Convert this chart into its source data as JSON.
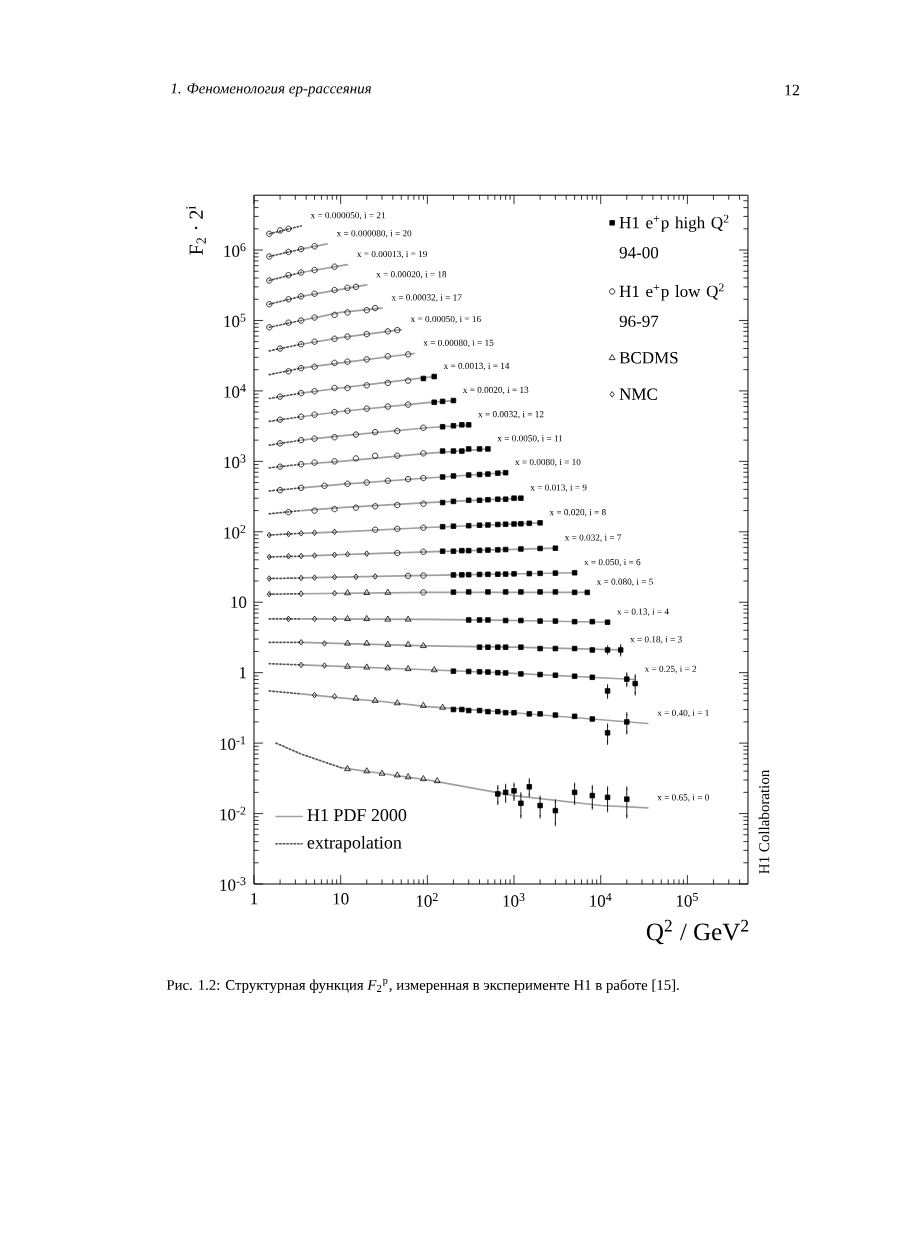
{
  "chart_data": {
    "type": "scatter",
    "xlabel": "Q$^{2}$ / GeV$^{2}$",
    "ylabel": "F$_{2}$ · 2$^{i}$",
    "log": "xy",
    "xlim": [
      1,
      500000
    ],
    "ylim": [
      0.001,
      6000000
    ],
    "xticks": [
      1,
      10,
      {
        "value": 100,
        "label": "10$^{2}$"
      },
      {
        "value": 1000,
        "label": "10$^{3}$"
      },
      {
        "value": 10000,
        "label": "10$^{4}$"
      },
      {
        "value": 100000,
        "label": "10$^{5}$"
      }
    ],
    "yticks": [
      {
        "value": 0.001,
        "label": "10$^{-3}$"
      },
      {
        "value": 0.01,
        "label": "10$^{-2}$"
      },
      {
        "value": 0.1,
        "label": "10$^{-1}$"
      },
      1,
      10,
      {
        "value": 100,
        "label": "10$^{2}$"
      },
      {
        "value": 1000,
        "label": "10$^{3}$"
      },
      {
        "value": 10000,
        "label": "10$^{4}$"
      },
      {
        "value": 100000,
        "label": "10$^{5}$"
      },
      {
        "value": 1000000,
        "label": "10$^{6}$"
      }
    ],
    "legend": "top right",
    "annotations": [
      "1. Феноменология ep-рассеяния",
      "12",
      "H1 Collaboration",
      "Рис. 1.2: Структурная функция *F*$_{2}$$^{p}$, измеренная в эксперименте H1 в работе [15].",
      {
        "text": "x = 0.000050, i = 21",
        "x": 3.5,
        "y": 2200000
      },
      {
        "text": "x = 0.000080, i = 20",
        "x": 7,
        "y": 1220000
      },
      {
        "text": "x = 0.00013, i = 19",
        "x": 12,
        "y": 620000
      },
      {
        "text": "x = 0.00020, i = 18",
        "x": 20,
        "y": 320000
      },
      {
        "text": "x = 0.00032, i = 17",
        "x": 30,
        "y": 150000
      },
      {
        "text": "x = 0.00050, i = 16",
        "x": 50,
        "y": 74000
      },
      {
        "text": "x = 0.00080, i = 15",
        "x": 70,
        "y": 34000
      },
      {
        "text": "x = 0.0013, i = 14",
        "x": 120,
        "y": 16000
      },
      {
        "text": "x = 0.0020, i = 13",
        "x": 200,
        "y": 7300
      },
      {
        "text": "x = 0.0032, i = 12",
        "x": 300,
        "y": 3300
      },
      {
        "text": "x = 0.0050, i = 11",
        "x": 500,
        "y": 1500
      },
      {
        "text": "x = 0.0080, i = 10",
        "x": 800,
        "y": 690
      },
      {
        "text": "x = 0.013, i = 9",
        "x": 1200,
        "y": 300
      },
      {
        "text": "x = 0.020, i = 8",
        "x": 2000,
        "y": 134
      },
      {
        "text": "x = 0.032, i = 7",
        "x": 3000,
        "y": 58.5
      },
      {
        "text": "x = 0.050, i = 6",
        "x": 5000,
        "y": 26.2
      },
      {
        "text": "x = 0.080, i = 5",
        "x": 7000,
        "y": 13.8
      },
      {
        "text": "x = 0.13, i = 4",
        "x": 12000,
        "y": 5.2
      },
      {
        "text": "x = 0.18, i = 3",
        "x": 17000,
        "y": 2.1
      },
      {
        "text": "x = 0.25, i = 2",
        "x": 25000,
        "y": 0.8
      },
      {
        "text": "x = 0.40, i = 1",
        "x": 35000,
        "y": 0.19
      },
      {
        "text": "x = 0.65, i = 0",
        "x": 35000,
        "y": 0.012
      }
    ],
    "series": [
      {
        "name": "H1 e$^{+}$p high Q$^{2}$ 94-00",
        "marker": "square",
        "color": "#000000",
        "x": [
          90,
          120,
          120,
          150,
          200,
          150,
          200,
          250,
          300,
          150,
          200,
          250,
          300,
          400,
          500,
          150,
          200,
          300,
          400,
          500,
          650,
          800,
          150,
          200,
          300,
          400,
          500,
          650,
          800,
          1000,
          1200,
          150,
          200,
          300,
          400,
          500,
          650,
          800,
          1000,
          1200,
          1500,
          2000,
          150,
          200,
          250,
          300,
          400,
          500,
          650,
          800,
          1200,
          2000,
          3000,
          200,
          250,
          300,
          400,
          500,
          650,
          800,
          1000,
          1500,
          2000,
          3000,
          5000,
          200,
          300,
          500,
          800,
          1200,
          2000,
          3000,
          5000,
          7000,
          300,
          400,
          500,
          800,
          1200,
          2000,
          3000,
          5000,
          8000,
          12000,
          400,
          500,
          650,
          800,
          1200,
          2000,
          3000,
          5000,
          8000,
          12000,
          17000,
          200,
          300,
          400,
          500,
          650,
          800,
          1200,
          2000,
          3000,
          5000,
          8000,
          12000,
          20000,
          25000,
          200,
          250,
          300,
          400,
          500,
          650,
          800,
          1000,
          1500,
          2000,
          3000,
          5000,
          8000,
          12000,
          20000,
          650,
          800,
          1000,
          1200,
          1500,
          2000,
          3000,
          5000,
          8000,
          12000,
          20000
        ],
        "values": [
          15000,
          16000,
          6900,
          7100,
          7300,
          3100,
          3200,
          3300,
          3300,
          1400,
          1400,
          1400,
          1500,
          1500,
          1500,
          600,
          620,
          640,
          650,
          660,
          680,
          690,
          260,
          270,
          280,
          280,
          285,
          290,
          290,
          300,
          300,
          118,
          120,
          122,
          124,
          125,
          127,
          128,
          129,
          130,
          132,
          134,
          53,
          53,
          54,
          54,
          54.5,
          55,
          55.4,
          56,
          57,
          58,
          58.5,
          24.4,
          24.5,
          24.6,
          24.8,
          24.9,
          25,
          25.1,
          25.3,
          25.5,
          25.7,
          25.9,
          26.2,
          13.9,
          14,
          14,
          14,
          14,
          14,
          14,
          13.8,
          13.8,
          5.6,
          5.6,
          5.6,
          5.5,
          5.5,
          5.4,
          5.4,
          5.3,
          5.3,
          5.2,
          2.3,
          2.3,
          2.3,
          2.3,
          2.3,
          2.2,
          2.2,
          2.2,
          2.1,
          2.1,
          2.1,
          1.05,
          1.04,
          1.03,
          1.02,
          1.0,
          0.99,
          0.96,
          0.94,
          0.92,
          0.89,
          0.86,
          0.55,
          0.81,
          0.7,
          0.3,
          0.3,
          0.29,
          0.29,
          0.28,
          0.28,
          0.27,
          0.27,
          0.26,
          0.26,
          0.25,
          0.24,
          0.22,
          0.14,
          0.2,
          0.019,
          0.02,
          0.021,
          0.014,
          0.024,
          0.013,
          0.011,
          0.02,
          0.018,
          0.017,
          0.016
        ],
        "errors": [
          null,
          null,
          null,
          null,
          null,
          null,
          null,
          null,
          null,
          null,
          null,
          null,
          null,
          null,
          null,
          null,
          null,
          null,
          null,
          null,
          null,
          null,
          null,
          null,
          null,
          null,
          null,
          null,
          null,
          null,
          null,
          null,
          null,
          null,
          null,
          null,
          null,
          null,
          null,
          null,
          null,
          null,
          null,
          null,
          null,
          null,
          null,
          null,
          null,
          null,
          null,
          null,
          null,
          null,
          null,
          null,
          null,
          null,
          null,
          null,
          null,
          null,
          null,
          null,
          null,
          null,
          null,
          null,
          null,
          null,
          null,
          null,
          null,
          null,
          null,
          null,
          null,
          null,
          null,
          null,
          null,
          null,
          null,
          null,
          null,
          null,
          null,
          null,
          null,
          null,
          null,
          null,
          null,
          0.2,
          0.3,
          null,
          null,
          null,
          null,
          null,
          null,
          null,
          null,
          null,
          null,
          null,
          0.1,
          0.15,
          0.2,
          null,
          null,
          null,
          null,
          null,
          null,
          null,
          null,
          null,
          null,
          null,
          null,
          null,
          0.04,
          0.06,
          0.005,
          0.005,
          0.005,
          0.005,
          0.006,
          0.004,
          0.004,
          0.006,
          0.006,
          0.006,
          0.007
        ]
      },
      {
        "name": "H1 e$^{+}$p low Q$^{2}$ 96-97",
        "marker": "circle",
        "color": "#000000",
        "x": [
          1.5,
          2,
          2.5,
          1.5,
          2.5,
          3.5,
          5,
          1.5,
          2.5,
          3.5,
          5,
          8.5,
          1.5,
          2.5,
          3.5,
          5,
          8.5,
          12,
          15,
          1.5,
          2.5,
          3.5,
          5,
          8.5,
          12,
          20,
          25,
          2,
          3.5,
          5,
          8.5,
          12,
          20,
          35,
          45,
          2.5,
          3.5,
          5,
          8.5,
          12,
          20,
          35,
          60,
          2,
          3.5,
          5,
          8.5,
          12,
          20,
          35,
          60,
          2,
          3.5,
          5,
          8.5,
          12,
          20,
          35,
          60,
          2,
          3.5,
          5,
          8.5,
          15,
          25,
          45,
          90,
          2,
          3.5,
          5,
          8.5,
          15,
          25,
          45,
          90,
          2,
          3.5,
          6.5,
          12,
          20,
          35,
          60,
          90,
          2.5,
          5,
          8.5,
          15,
          25,
          45,
          90,
          25,
          45,
          90,
          45,
          90,
          60,
          90,
          90
        ],
        "values": [
          1700000,
          1900000,
          2000000,
          810000,
          940000,
          1030000,
          1130000,
          370000,
          440000,
          480000,
          520000,
          580000,
          170000,
          200000,
          220000,
          240000,
          270000,
          290000,
          300000,
          80000,
          93000,
          100000,
          110000,
          120000,
          130000,
          140000,
          150000,
          40000,
          46000,
          50000,
          55000,
          59000,
          64000,
          70000,
          73000,
          19000,
          21000,
          22000,
          25000,
          26000,
          28000,
          31000,
          33000,
          8300,
          9300,
          9900,
          11000,
          11000,
          12000,
          13000,
          14000,
          3900,
          4300,
          4600,
          5000,
          5200,
          5600,
          6000,
          6400,
          1800,
          2000,
          2100,
          2200,
          2400,
          2600,
          2700,
          3000,
          840,
          910,
          960,
          1000,
          1100,
          1200,
          1200,
          1300,
          390,
          420,
          450,
          480,
          500,
          530,
          560,
          580,
          190,
          200,
          210,
          220,
          230,
          240,
          250,
          107,
          110,
          114,
          50,
          52,
          23.7,
          23.9,
          13.8
        ]
      },
      {
        "name": "BCDMS",
        "marker": "triangle",
        "color": "#000000",
        "x": [
          12,
          20,
          35,
          12,
          20,
          35,
          60,
          12,
          20,
          35,
          60,
          90,
          12,
          20,
          35,
          60,
          120,
          15,
          25,
          45,
          90,
          150,
          12,
          20,
          30,
          45,
          60,
          90,
          130
        ],
        "values": [
          13.5,
          13.6,
          13.7,
          5.8,
          5.8,
          5.7,
          5.7,
          2.6,
          2.6,
          2.5,
          2.5,
          2.4,
          1.22,
          1.19,
          1.16,
          1.13,
          1.09,
          0.43,
          0.4,
          0.37,
          0.34,
          0.32,
          0.043,
          0.04,
          0.037,
          0.035,
          0.033,
          0.031,
          0.029
        ]
      },
      {
        "name": "NMC",
        "marker": "diamond",
        "color": "#000000",
        "x": [
          1.5,
          2.5,
          3.5,
          5,
          8.5,
          1.5,
          2.5,
          3.5,
          5,
          8.5,
          12,
          20,
          1.5,
          3.5,
          5,
          8.5,
          15,
          25,
          1.5,
          3.5,
          8.5,
          2.5,
          5,
          8.5,
          3.5,
          6.5,
          3.5,
          6.5,
          5,
          8.5
        ],
        "values": [
          90,
          93,
          95,
          97,
          100,
          44,
          45,
          45.3,
          46,
          47,
          48,
          49,
          21.7,
          22.1,
          22.3,
          22.7,
          23,
          23.2,
          13.0,
          13.2,
          13.4,
          5.8,
          5.8,
          5.8,
          2.7,
          2.6,
          1.29,
          1.26,
          0.48,
          0.46
        ]
      },
      {
        "type": "line",
        "line_style": "solid",
        "color": "#a0a0a0",
        "x": [
          3.5,
          7
        ],
        "values": [
          1030000,
          1220000
        ]
      },
      {
        "type": "line",
        "line_style": "solid",
        "color": "#a0a0a0",
        "x": [
          3.5,
          12
        ],
        "values": [
          480000,
          620000
        ]
      },
      {
        "type": "line",
        "line_style": "solid",
        "color": "#a0a0a0",
        "x": [
          3.5,
          20
        ],
        "values": [
          220000,
          320000
        ]
      },
      {
        "type": "line",
        "line_style": "solid",
        "color": "#a0a0a0",
        "x": [
          3.5,
          10,
          30
        ],
        "values": [
          100000,
          130000,
          150000
        ]
      },
      {
        "type": "line",
        "line_style": "solid",
        "color": "#a0a0a0",
        "x": [
          3.5,
          10,
          50
        ],
        "values": [
          46000,
          57000,
          74000
        ]
      },
      {
        "type": "line",
        "line_style": "solid",
        "color": "#a0a0a0",
        "x": [
          3.5,
          10,
          70
        ],
        "values": [
          21000,
          25000,
          34000
        ]
      },
      {
        "type": "line",
        "line_style": "solid",
        "color": "#a0a0a0",
        "x": [
          3.5,
          10,
          30,
          120
        ],
        "values": [
          9300,
          11000,
          13000,
          16000
        ]
      },
      {
        "type": "line",
        "line_style": "solid",
        "color": "#a0a0a0",
        "x": [
          3.5,
          10,
          100,
          200
        ],
        "values": [
          4300,
          5100,
          6800,
          7300
        ]
      },
      {
        "type": "line",
        "line_style": "solid",
        "color": "#a0a0a0",
        "x": [
          3.5,
          10,
          100,
          300
        ],
        "values": [
          2000,
          2300,
          3000,
          3300
        ]
      },
      {
        "type": "line",
        "line_style": "solid",
        "color": "#a0a0a0",
        "x": [
          3.5,
          10,
          100,
          500
        ],
        "values": [
          910,
          1000,
          1300,
          1500
        ]
      },
      {
        "type": "line",
        "line_style": "solid",
        "color": "#a0a0a0",
        "x": [
          3.5,
          10,
          100,
          800
        ],
        "values": [
          420,
          470,
          580,
          690
        ]
      },
      {
        "type": "line",
        "line_style": "solid",
        "color": "#a0a0a0",
        "x": [
          3.5,
          10,
          100,
          1200
        ],
        "values": [
          200,
          220,
          260,
          300
        ]
      },
      {
        "type": "line",
        "line_style": "solid",
        "color": "#a0a0a0",
        "x": [
          3.5,
          10,
          100,
          2000
        ],
        "values": [
          95,
          100,
          115,
          134
        ]
      },
      {
        "type": "line",
        "line_style": "solid",
        "color": "#a0a0a0",
        "x": [
          3.5,
          10,
          100,
          1000,
          3000
        ],
        "values": [
          45,
          47.4,
          52,
          56.3,
          58.5
        ]
      },
      {
        "type": "line",
        "line_style": "solid",
        "color": "#a0a0a0",
        "x": [
          3.5,
          100,
          5000
        ],
        "values": [
          22.1,
          24,
          26.2
        ]
      },
      {
        "type": "line",
        "line_style": "solid",
        "color": "#a0a0a0",
        "x": [
          3.5,
          100,
          7000
        ],
        "values": [
          13.2,
          13.8,
          13.8
        ]
      },
      {
        "type": "line",
        "line_style": "solid",
        "color": "#a0a0a0",
        "x": [
          3.5,
          100,
          1000,
          12000
        ],
        "values": [
          5.8,
          5.7,
          5.5,
          5.2
        ]
      },
      {
        "type": "line",
        "line_style": "solid",
        "color": "#a0a0a0",
        "x": [
          3.5,
          100,
          1000,
          17000
        ],
        "values": [
          2.7,
          2.4,
          2.3,
          2.1
        ]
      },
      {
        "type": "line",
        "line_style": "solid",
        "color": "#a0a0a0",
        "x": [
          3.5,
          100,
          1000,
          25000
        ],
        "values": [
          1.29,
          1.1,
          0.98,
          0.8
        ]
      },
      {
        "type": "line",
        "line_style": "solid",
        "color": "#a0a0a0",
        "x": [
          3.5,
          10,
          30,
          100,
          1000,
          35000
        ],
        "values": [
          0.5,
          0.44,
          0.39,
          0.33,
          0.27,
          0.19
        ]
      },
      {
        "name": "H1 PDF 2000",
        "type": "line",
        "line_style": "solid",
        "color": "#a0a0a0",
        "x": [
          10,
          30,
          100,
          1000,
          10000,
          35000
        ],
        "values": [
          0.045,
          0.037,
          0.03,
          0.018,
          0.013,
          0.012
        ]
      },
      {
        "name": "extrapolation",
        "type": "line",
        "line_style": "dotted",
        "color": "#555555",
        "x": [
          1.5,
          3.5
        ],
        "values": [
          1700000,
          2200000
        ]
      },
      {
        "type": "line",
        "line_style": "dotted",
        "color": "#555555",
        "x": [
          1.5,
          3.5
        ],
        "values": [
          810000,
          1030000
        ]
      },
      {
        "type": "line",
        "line_style": "dotted",
        "color": "#555555",
        "x": [
          1.5,
          3.5
        ],
        "values": [
          370000,
          480000
        ]
      },
      {
        "type": "line",
        "line_style": "dotted",
        "color": "#555555",
        "x": [
          1.5,
          3.5
        ],
        "values": [
          170000,
          220000
        ]
      },
      {
        "type": "line",
        "line_style": "dotted",
        "color": "#555555",
        "x": [
          1.5,
          3.5
        ],
        "values": [
          80000,
          100000
        ]
      },
      {
        "type": "line",
        "line_style": "dotted",
        "color": "#555555",
        "x": [
          1.5,
          3.5
        ],
        "values": [
          37000,
          46000
        ]
      },
      {
        "type": "line",
        "line_style": "dotted",
        "color": "#555555",
        "x": [
          1.5,
          3.5
        ],
        "values": [
          17000,
          21000
        ]
      },
      {
        "type": "line",
        "line_style": "dotted",
        "color": "#555555",
        "x": [
          1.5,
          3.5
        ],
        "values": [
          7800,
          9300
        ]
      },
      {
        "type": "line",
        "line_style": "dotted",
        "color": "#555555",
        "x": [
          1.5,
          3.5
        ],
        "values": [
          3700,
          4300
        ]
      },
      {
        "type": "line",
        "line_style": "dotted",
        "color": "#555555",
        "x": [
          1.5,
          3.5
        ],
        "values": [
          1700,
          2000
        ]
      },
      {
        "type": "line",
        "line_style": "dotted",
        "color": "#555555",
        "x": [
          1.5,
          3.5
        ],
        "values": [
          810,
          910
        ]
      },
      {
        "type": "line",
        "line_style": "dotted",
        "color": "#555555",
        "x": [
          1.5,
          3.5
        ],
        "values": [
          380,
          420
        ]
      },
      {
        "type": "line",
        "line_style": "dotted",
        "color": "#555555",
        "x": [
          1.5,
          3.5
        ],
        "values": [
          180,
          200
        ]
      },
      {
        "type": "line",
        "line_style": "dotted",
        "color": "#555555",
        "x": [
          1.5,
          3.5
        ],
        "values": [
          90,
          95
        ]
      },
      {
        "type": "line",
        "line_style": "dotted",
        "color": "#555555",
        "x": [
          1.5,
          3.5
        ],
        "values": [
          44,
          45
        ]
      },
      {
        "type": "line",
        "line_style": "dotted",
        "color": "#555555",
        "x": [
          1.5,
          3.5
        ],
        "values": [
          21.7,
          22.1
        ]
      },
      {
        "type": "line",
        "line_style": "dotted",
        "color": "#555555",
        "x": [
          1.5,
          3.5
        ],
        "values": [
          13.0,
          13.2
        ]
      },
      {
        "type": "line",
        "line_style": "dotted",
        "color": "#555555",
        "x": [
          1.5,
          3.5
        ],
        "values": [
          5.8,
          5.8
        ]
      },
      {
        "type": "line",
        "line_style": "dotted",
        "color": "#555555",
        "x": [
          1.5,
          3.5
        ],
        "values": [
          2.7,
          2.7
        ]
      },
      {
        "type": "line",
        "line_style": "dotted",
        "color": "#555555",
        "x": [
          1.5,
          3.5
        ],
        "values": [
          1.34,
          1.29
        ]
      },
      {
        "type": "line",
        "line_style": "dotted",
        "color": "#555555",
        "x": [
          1.5,
          3.5
        ],
        "values": [
          0.55,
          0.5
        ]
      },
      {
        "type": "line",
        "line_style": "dotted",
        "color": "#555555",
        "x": [
          1.8,
          3.5,
          10
        ],
        "values": [
          0.1,
          0.07,
          0.045
        ]
      }
    ]
  }
}
